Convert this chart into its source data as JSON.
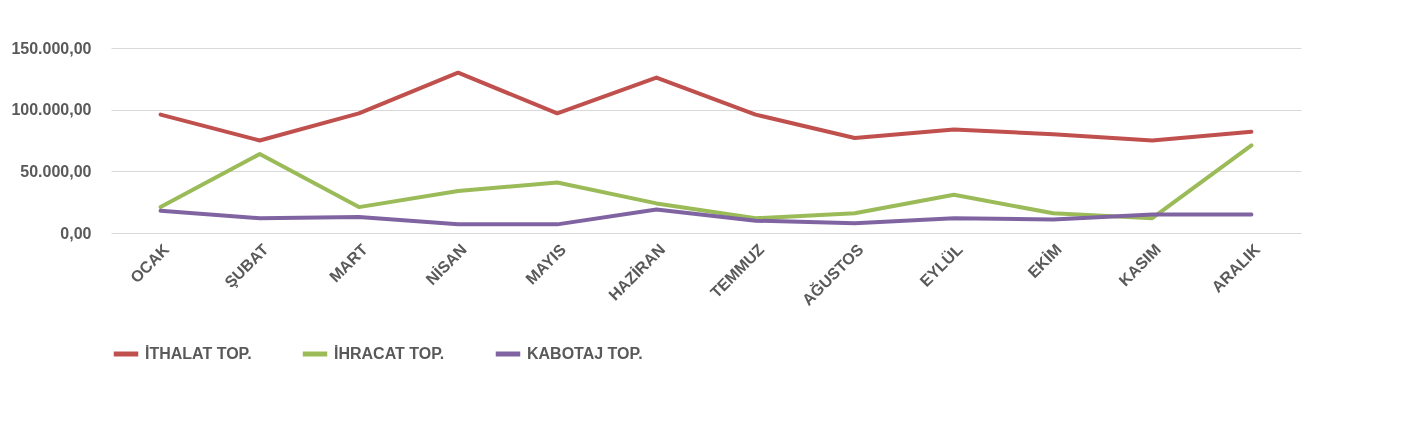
{
  "chart_data": {
    "type": "line",
    "categories": [
      "OCAK",
      "ŞUBAT",
      "MART",
      "NİSAN",
      "MAYIS",
      "HAZİRAN",
      "TEMMUZ",
      "AĞUSTOS",
      "EYLÜL",
      "EKİM",
      "KASIM",
      "ARALIK"
    ],
    "series": [
      {
        "name": "İTHALAT TOP.",
        "color": "#c0504d",
        "values": [
          96000,
          75000,
          97000,
          130000,
          97000,
          126000,
          96000,
          77000,
          84000,
          80000,
          75000,
          82000
        ]
      },
      {
        "name": "İHRACAT TOP.",
        "color": "#9bbb59",
        "values": [
          21000,
          64000,
          21000,
          34000,
          41000,
          24000,
          12000,
          16000,
          31000,
          16000,
          12000,
          71000
        ]
      },
      {
        "name": "KABOTAJ TOP.",
        "color": "#8064a2",
        "values": [
          18000,
          12000,
          13000,
          7000,
          7000,
          19000,
          10000,
          8000,
          12000,
          11000,
          15000,
          15000
        ]
      }
    ],
    "ylim": [
      0,
      150000
    ],
    "yticks": [
      {
        "value": 0,
        "label": "0,00"
      },
      {
        "value": 50000,
        "label": "50.000,00"
      },
      {
        "value": 100000,
        "label": "100.000,00"
      },
      {
        "value": 150000,
        "label": "150.000,00"
      }
    ],
    "grid": "y",
    "legend": "bottom",
    "marker": "none",
    "line_style": "solid"
  }
}
